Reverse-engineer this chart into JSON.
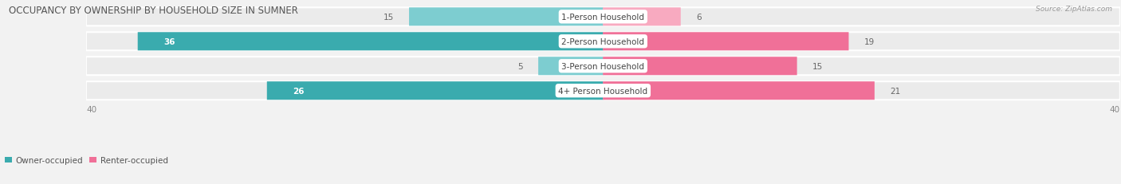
{
  "title": "OCCUPANCY BY OWNERSHIP BY HOUSEHOLD SIZE IN SUMNER",
  "source": "Source: ZipAtlas.com",
  "categories": [
    "1-Person Household",
    "2-Person Household",
    "3-Person Household",
    "4+ Person Household"
  ],
  "owner_values": [
    15,
    36,
    5,
    26
  ],
  "renter_values": [
    6,
    19,
    15,
    21
  ],
  "owner_color_dark": "#3aabae",
  "owner_color_light": "#7dcdd0",
  "renter_color_dark": "#f07098",
  "renter_color_light": "#f8aac0",
  "axis_max": 40,
  "owner_label": "Owner-occupied",
  "renter_label": "Renter-occupied",
  "bg_color": "#f2f2f2",
  "row_bg": "#e8e8e8",
  "title_fontsize": 8.5,
  "label_fontsize": 7.5,
  "value_fontsize": 7.5,
  "source_fontsize": 6.5,
  "axis_fontsize": 7.5,
  "owner_dark_threshold": 20,
  "renter_dark_threshold": 10
}
